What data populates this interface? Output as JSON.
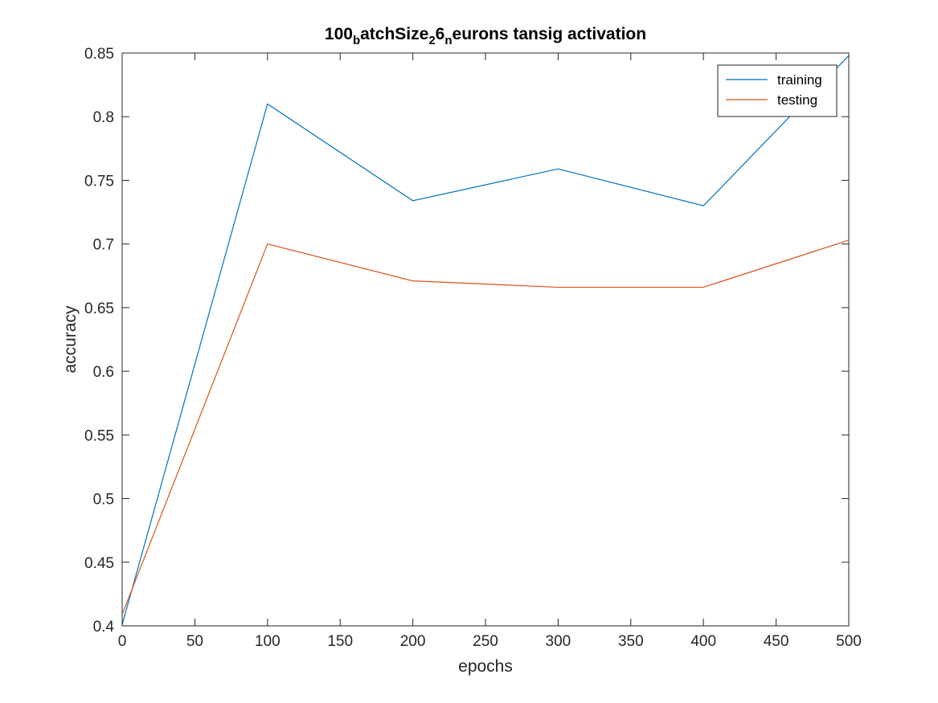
{
  "chart_data": {
    "type": "line",
    "title": {
      "segments": [
        {
          "text": "100",
          "sub": false
        },
        {
          "text": "b",
          "sub": true
        },
        {
          "text": "atchSize",
          "sub": false
        },
        {
          "text": "2",
          "sub": true
        },
        {
          "text": "6",
          "sub": false
        },
        {
          "text": "n",
          "sub": true
        },
        {
          "text": "eurons tansig activation",
          "sub": false
        }
      ]
    },
    "xlabel": "epochs",
    "ylabel": "accuracy",
    "xlim": [
      0,
      500
    ],
    "ylim": [
      0.4,
      0.85
    ],
    "xticks": [
      0,
      50,
      100,
      150,
      200,
      250,
      300,
      350,
      400,
      450,
      500
    ],
    "yticks": [
      0.4,
      0.45,
      0.5,
      0.55,
      0.6,
      0.65,
      0.7,
      0.75,
      0.8,
      0.85
    ],
    "grid": false,
    "legend_position": "top-right",
    "x": [
      0,
      100,
      200,
      300,
      400,
      500
    ],
    "series": [
      {
        "name": "training",
        "color": "#0072BD",
        "values": [
          0.401,
          0.81,
          0.734,
          0.759,
          0.73,
          0.848
        ]
      },
      {
        "name": "testing",
        "color": "#D95319",
        "values": [
          0.409,
          0.7,
          0.671,
          0.666,
          0.666,
          0.703
        ]
      }
    ]
  }
}
